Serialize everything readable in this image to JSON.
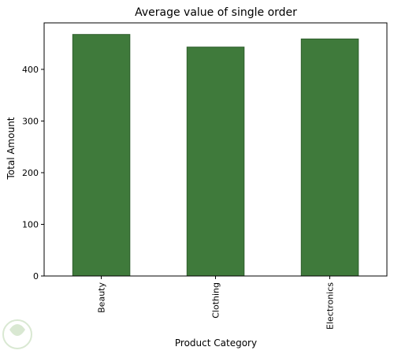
{
  "chart_data": {
    "type": "bar",
    "title": "Average value of single order",
    "xlabel": "Product Category",
    "ylabel": "Total Amount",
    "categories": [
      "Beauty",
      "Clothing",
      "Electronics"
    ],
    "values": [
      467.5,
      443.2,
      458.8
    ],
    "ylim": [
      0,
      490
    ],
    "yticks": [
      0,
      100,
      200,
      300,
      400
    ],
    "grid": false,
    "bar_color": "#3f7a3b",
    "bar_edge_color": "#2f5f2c"
  }
}
